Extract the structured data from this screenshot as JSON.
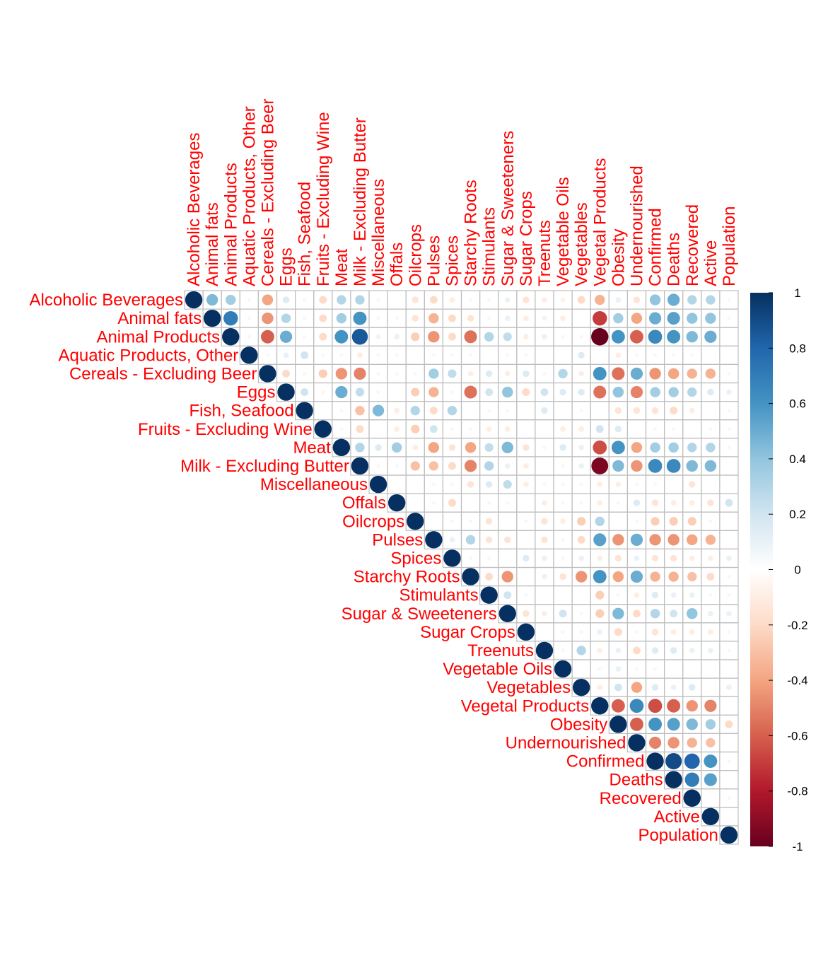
{
  "chart_data": {
    "type": "heatmap",
    "style": "upper-triangle circle correlation matrix",
    "variables": [
      "Alcoholic Beverages",
      "Animal fats",
      "Animal Products",
      "Aquatic Products, Other",
      "Cereals - Excluding Beer",
      "Eggs",
      "Fish, Seafood",
      "Fruits - Excluding Wine",
      "Meat",
      "Milk - Excluding Butter",
      "Miscellaneous",
      "Offals",
      "Oilcrops",
      "Pulses",
      "Spices",
      "Starchy Roots",
      "Stimulants",
      "Sugar & Sweeteners",
      "Sugar Crops",
      "Treenuts",
      "Vegetable Oils",
      "Vegetables",
      "Vegetal Products",
      "Obesity",
      "Undernourished",
      "Confirmed",
      "Deaths",
      "Recovered",
      "Active",
      "Population"
    ],
    "correlation_rows": [
      [
        1,
        0.45,
        0.35,
        0.05,
        -0.4,
        0.15,
        0.05,
        -0.2,
        0.3,
        0.3,
        0.05,
        0,
        -0.15,
        -0.2,
        -0.1,
        -0.05,
        0.05,
        0.1,
        -0.15,
        -0.1,
        -0.08,
        -0.2,
        -0.35,
        0.1,
        -0.15,
        0.4,
        0.5,
        0.3,
        0.3,
        -0.05
      ],
      [
        1,
        0.7,
        0.05,
        -0.45,
        0.3,
        0.05,
        -0.2,
        0.35,
        0.6,
        0.05,
        0.05,
        -0.15,
        -0.35,
        -0.2,
        -0.15,
        0.05,
        0.1,
        -0.1,
        0.08,
        -0.1,
        0,
        -0.7,
        0.35,
        -0.4,
        0.5,
        0.55,
        0.4,
        0.4,
        -0.05
      ],
      [
        1,
        0.05,
        -0.6,
        0.5,
        0.05,
        -0.2,
        0.6,
        0.85,
        0.08,
        0.1,
        -0.25,
        -0.45,
        -0.2,
        -0.55,
        0.3,
        0.25,
        -0.1,
        0.1,
        -0.05,
        -0.05,
        -1,
        0.6,
        -0.6,
        0.65,
        0.6,
        0.45,
        0.5,
        0
      ],
      [
        1,
        0.05,
        0.1,
        0.2,
        0.05,
        0.05,
        -0.1,
        0.05,
        0.05,
        0,
        -0.05,
        0.05,
        -0.05,
        0,
        0.05,
        0.05,
        0,
        0,
        0.15,
        0,
        -0.1,
        -0.05,
        -0.05,
        -0.05,
        -0.05,
        0,
        0
      ],
      [
        1,
        -0.2,
        -0.05,
        -0.25,
        -0.45,
        -0.5,
        -0.05,
        0.05,
        0.05,
        0.35,
        0.25,
        -0.1,
        0.15,
        -0.1,
        0.15,
        -0.05,
        0.3,
        -0.1,
        0.6,
        -0.55,
        0.5,
        -0.45,
        -0.4,
        -0.35,
        -0.35,
        0.05
      ],
      [
        1,
        0.2,
        -0.05,
        0.5,
        0.25,
        0.05,
        0,
        -0.25,
        -0.35,
        -0.05,
        -0.55,
        0.2,
        0.4,
        -0.2,
        0.2,
        0.15,
        0.15,
        -0.55,
        0.4,
        -0.5,
        0.35,
        0.35,
        0.3,
        0.15,
        0.1
      ],
      [
        1,
        0,
        0.05,
        -0.3,
        0.45,
        -0.1,
        0.3,
        -0.2,
        0.3,
        0,
        0.05,
        0.05,
        0,
        0.15,
        0,
        -0.05,
        0,
        -0.15,
        -0.15,
        -0.15,
        -0.2,
        -0.1,
        0,
        0.05
      ],
      [
        1,
        -0.05,
        -0.2,
        0,
        -0.1,
        -0.25,
        0.2,
        0.05,
        0.05,
        -0.1,
        -0.1,
        0,
        0,
        -0.1,
        -0.1,
        0.2,
        0.15,
        0,
        -0.05,
        -0.05,
        0,
        -0.05,
        -0.05
      ],
      [
        1,
        0.3,
        0.15,
        0.35,
        -0.1,
        -0.4,
        -0.15,
        -0.4,
        0.25,
        0.45,
        -0.15,
        0.05,
        0.15,
        0.1,
        -0.65,
        0.6,
        -0.4,
        0.35,
        0.35,
        0.3,
        0.3,
        -0.05
      ],
      [
        1,
        -0.05,
        0.05,
        -0.3,
        -0.3,
        -0.2,
        -0.5,
        0.3,
        0.1,
        -0.1,
        0,
        -0.05,
        0.1,
        -0.95,
        0.45,
        -0.45,
        0.65,
        0.65,
        0.45,
        0.45,
        0
      ],
      [
        1,
        0,
        0,
        0.05,
        0.05,
        -0.15,
        0.15,
        0.25,
        -0.1,
        0.05,
        -0.05,
        -0.05,
        -0.1,
        -0.1,
        -0.05,
        -0.05,
        0,
        -0.15,
        0,
        0
      ],
      [
        1,
        0,
        -0.05,
        -0.2,
        0,
        0.05,
        -0.05,
        0,
        -0.1,
        -0.05,
        -0.05,
        -0.1,
        -0.05,
        0.15,
        -0.15,
        -0.1,
        -0.1,
        -0.15,
        0.2
      ],
      [
        1,
        0,
        0.05,
        0.05,
        -0.15,
        0,
        -0.05,
        -0.15,
        -0.1,
        -0.25,
        0.3,
        0,
        -0.05,
        -0.25,
        -0.25,
        -0.25,
        -0.05,
        0
      ],
      [
        1,
        0.1,
        0.3,
        -0.15,
        -0.15,
        0,
        -0.15,
        -0.05,
        -0.2,
        0.55,
        -0.45,
        0.5,
        -0.45,
        -0.45,
        -0.4,
        -0.35,
        0
      ],
      [
        1,
        -0.05,
        -0.05,
        0,
        0.15,
        0.1,
        -0.05,
        0.1,
        -0.1,
        -0.15,
        0.1,
        -0.15,
        -0.15,
        -0.1,
        -0.1,
        0.1
      ],
      [
        1,
        -0.2,
        -0.45,
        0,
        -0.1,
        -0.15,
        -0.45,
        0.6,
        -0.4,
        0.5,
        -0.35,
        -0.35,
        -0.3,
        -0.2,
        -0.05
      ],
      [
        1,
        0.2,
        0.05,
        0,
        0,
        0,
        -0.25,
        0.05,
        -0.1,
        0.15,
        0.1,
        0.1,
        0.05,
        0.05
      ],
      [
        1,
        -0.15,
        -0.1,
        0.2,
        -0.05,
        -0.25,
        0.45,
        -0.2,
        0.3,
        0.2,
        0.4,
        0.1,
        0.1
      ],
      [
        1,
        0,
        0.05,
        0.05,
        0.1,
        -0.2,
        0.05,
        -0.15,
        -0.1,
        -0.1,
        -0.1,
        -0.05
      ],
      [
        1,
        0.05,
        0.3,
        -0.1,
        0.1,
        -0.2,
        0.15,
        0.15,
        0.1,
        0.1,
        0.05
      ],
      [
        1,
        0,
        0.05,
        0.1,
        -0.05,
        0.05,
        0,
        0,
        0,
        0
      ],
      [
        1,
        -0.1,
        0.2,
        -0.4,
        0.15,
        0.1,
        0.15,
        0,
        0.1
      ],
      [
        1,
        -0.6,
        0.65,
        -0.65,
        -0.6,
        -0.45,
        -0.5,
        0
      ],
      [
        1,
        -0.6,
        0.6,
        0.55,
        0.45,
        0.35,
        -0.2
      ],
      [
        1,
        -0.5,
        -0.45,
        -0.35,
        -0.3,
        0
      ],
      [
        1,
        0.9,
        0.8,
        0.6,
        -0.05
      ],
      [
        1,
        0.7,
        0.55,
        0
      ],
      [
        1,
        0,
        -0.05
      ],
      [
        1,
        0
      ],
      [
        1
      ]
    ],
    "colorbar": {
      "range": [
        -1,
        1
      ],
      "ticks": [
        "1",
        "0.8",
        "0.6",
        "0.4",
        "0.2",
        "0",
        "-0.2",
        "-0.4",
        "-0.6",
        "-0.8",
        "-1"
      ],
      "colors": [
        "#67001F",
        "#B2182B",
        "#D6604D",
        "#F4A582",
        "#FDDBC7",
        "#FFFFFF",
        "#D1E5F0",
        "#92C5DE",
        "#4393C3",
        "#2166AC",
        "#053061"
      ]
    },
    "label_color": "#FF0000",
    "grid_color": "#BEBEBE"
  }
}
